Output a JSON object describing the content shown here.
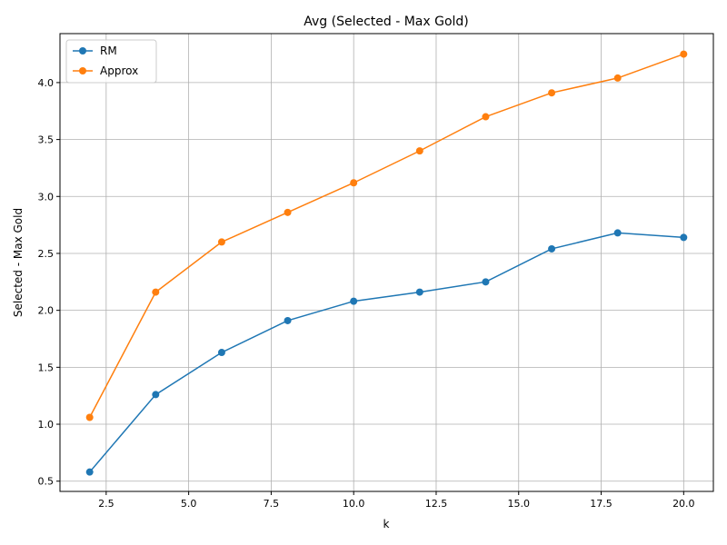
{
  "chart_data": {
    "type": "line",
    "title": "Avg (Selected - Max Gold)",
    "xlabel": "k",
    "ylabel": "Selected - Max Gold",
    "x": [
      2,
      4,
      6,
      8,
      10,
      12,
      14,
      16,
      18,
      20
    ],
    "xlim": [
      1.1,
      20.9
    ],
    "ylim": [
      0.41,
      4.43
    ],
    "xticks": [
      2.5,
      5.0,
      7.5,
      10.0,
      12.5,
      15.0,
      17.5,
      20.0
    ],
    "xtick_labels": [
      "2.5",
      "5.0",
      "7.5",
      "10.0",
      "12.5",
      "15.0",
      "17.5",
      "20.0"
    ],
    "yticks": [
      0.5,
      1.0,
      1.5,
      2.0,
      2.5,
      3.0,
      3.5,
      4.0
    ],
    "ytick_labels": [
      "0.5",
      "1.0",
      "1.5",
      "2.0",
      "2.5",
      "3.0",
      "3.5",
      "4.0"
    ],
    "grid": true,
    "legend_position": "top-left",
    "series": [
      {
        "name": "RM",
        "color": "#1f77b4",
        "values": [
          0.58,
          1.26,
          1.63,
          1.91,
          2.08,
          2.16,
          2.25,
          2.54,
          2.68,
          2.64
        ]
      },
      {
        "name": "Approx",
        "color": "#ff7f0e",
        "values": [
          1.06,
          2.16,
          2.6,
          2.86,
          3.12,
          3.4,
          3.7,
          3.91,
          4.04,
          4.25
        ]
      }
    ]
  }
}
